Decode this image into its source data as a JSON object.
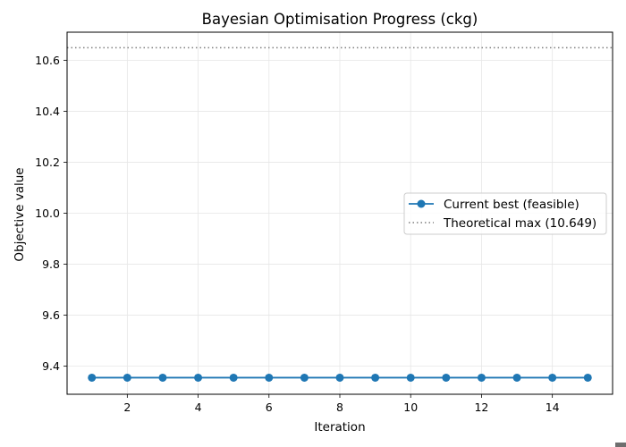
{
  "chart_data": {
    "type": "line",
    "title": "Bayesian Optimisation Progress (ckg)",
    "xlabel": "Iteration",
    "ylabel": "Objective value",
    "xlim": [
      0.3,
      15.7
    ],
    "ylim": [
      9.29,
      10.71
    ],
    "x_ticks": [
      2,
      4,
      6,
      8,
      10,
      12,
      14
    ],
    "y_ticks": [
      9.4,
      9.6,
      9.8,
      10.0,
      10.2,
      10.4,
      10.6
    ],
    "grid": true,
    "legend_position": "center-right",
    "series": [
      {
        "name": "Current best (feasible)",
        "style": "solid-with-markers",
        "color": "#1f77b4",
        "x": [
          1,
          2,
          3,
          4,
          5,
          6,
          7,
          8,
          9,
          10,
          11,
          12,
          13,
          14,
          15
        ],
        "y": [
          9.355,
          9.355,
          9.355,
          9.355,
          9.355,
          9.355,
          9.355,
          9.355,
          9.355,
          9.355,
          9.355,
          9.355,
          9.355,
          9.355,
          9.355
        ]
      }
    ],
    "reference_lines": [
      {
        "name": "Theoretical max (10.649)",
        "orientation": "horizontal",
        "y": 10.649,
        "style": "dotted",
        "color": "#7f7f7f"
      }
    ]
  }
}
